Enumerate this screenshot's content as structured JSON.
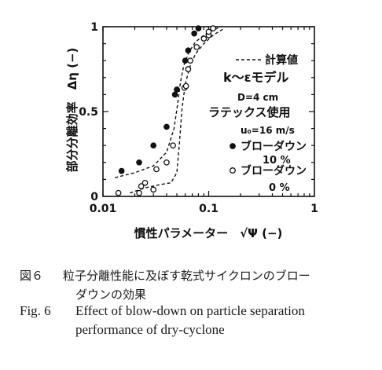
{
  "chart_data": {
    "type": "scatter",
    "xscale": "log",
    "xlim": [
      0.01,
      1
    ],
    "ylim": [
      0,
      1
    ],
    "xlabel": "慣性パラメーター　√Ψ (−)",
    "ylabel": "部分分離効率　Δη (−)",
    "xticks": [
      {
        "value": 0.01,
        "label": "0.01"
      },
      {
        "value": 0.1,
        "label": "0.1"
      },
      {
        "value": 1,
        "label": "1"
      }
    ],
    "yticks": [
      {
        "value": 0,
        "label": "0"
      },
      {
        "value": 0.5,
        "label": "0.5"
      },
      {
        "value": 1,
        "label": "1"
      }
    ],
    "legend": {
      "line_label": "計算値",
      "model": "k〜εモデル",
      "diameter": "D=4 cm",
      "latex": "ラテックス使用",
      "velocity": "u₀=16 m/s",
      "series_label_1": "ブローダウン",
      "series_pct_1": "10 %",
      "series_label_2": "ブローダウン",
      "series_pct_2": "0 %"
    },
    "series": [
      {
        "name": "ブローダウン 10 %",
        "marker": "filled-circle",
        "x": [
          0.015,
          0.022,
          0.03,
          0.04,
          0.048,
          0.05,
          0.06,
          0.064,
          0.073,
          0.08
        ],
        "y": [
          0.15,
          0.2,
          0.3,
          0.41,
          0.6,
          0.63,
          0.8,
          0.86,
          0.96,
          0.99
        ]
      },
      {
        "name": "ブローダウン 0 %",
        "marker": "open-circle",
        "x": [
          0.014,
          0.022,
          0.023,
          0.025,
          0.03,
          0.032,
          0.04,
          0.046,
          0.059,
          0.061,
          0.064,
          0.067,
          0.077,
          0.09,
          0.1,
          0.1,
          0.11
        ],
        "y": [
          0.02,
          0.02,
          0.06,
          0.08,
          0.04,
          0.16,
          0.2,
          0.3,
          0.64,
          0.65,
          0.75,
          0.8,
          0.88,
          0.93,
          0.95,
          0.97,
          0.99
        ]
      },
      {
        "name": "計算値 (upper)",
        "style": "dashed",
        "x": [
          0.013,
          0.02,
          0.03,
          0.04,
          0.047,
          0.051,
          0.054,
          0.058,
          0.065,
          0.075,
          0.09,
          0.11,
          0.13
        ],
        "y": [
          0.11,
          0.14,
          0.18,
          0.26,
          0.4,
          0.55,
          0.67,
          0.77,
          0.85,
          0.91,
          0.95,
          0.98,
          1.0
        ]
      },
      {
        "name": "計算値 (lower)",
        "style": "dashed",
        "x": [
          0.018,
          0.025,
          0.035,
          0.044,
          0.05,
          0.053,
          0.056,
          0.06,
          0.066,
          0.075,
          0.09,
          0.11,
          0.14
        ],
        "y": [
          0.02,
          0.05,
          0.07,
          0.08,
          0.14,
          0.32,
          0.52,
          0.66,
          0.76,
          0.84,
          0.9,
          0.95,
          0.99
        ]
      }
    ]
  },
  "caption": {
    "ja_label": "図６",
    "ja_line1": "粒子分離性能に及ぼす乾式サイクロンのブロー",
    "ja_line2": "ダウンの効果",
    "en_label": "Fig. 6",
    "en_line1": "Effect of blow-down on particle separation",
    "en_line2": "performance of dry-cyclone"
  }
}
